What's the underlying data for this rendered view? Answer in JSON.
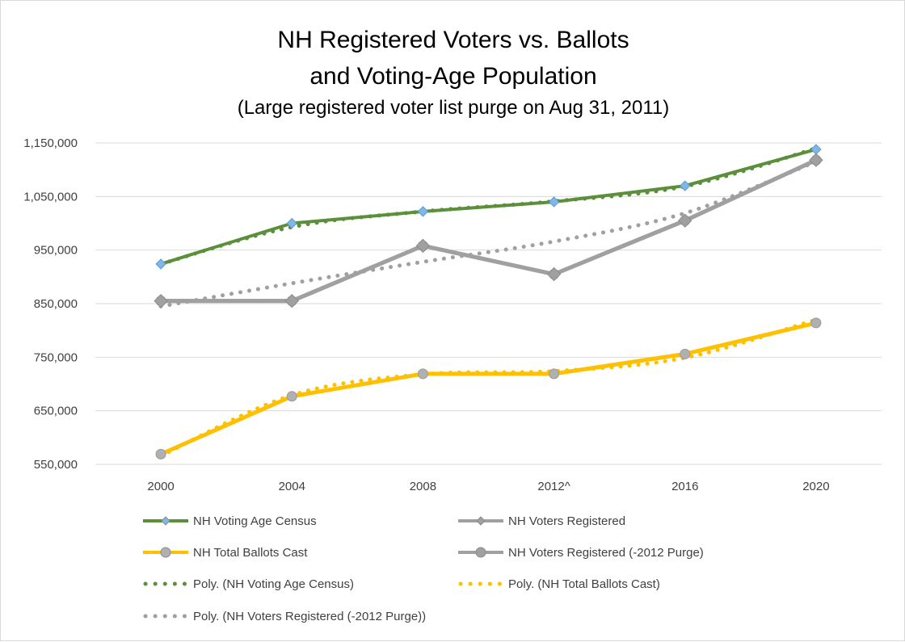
{
  "chart_data": {
    "type": "line",
    "title": [
      "NH Registered Voters vs. Ballots",
      "and Voting-Age Population"
    ],
    "subtitle": "(Large registered voter list purge on Aug 31, 2011)",
    "categories": [
      "2000",
      "2004",
      "2008",
      "2012^",
      "2016",
      "2020"
    ],
    "y_ticks": [
      "550,000",
      "650,000",
      "750,000",
      "850,000",
      "950,000",
      "1,050,000",
      "1,150,000"
    ],
    "ylim": [
      550000,
      1150000
    ],
    "grid": true,
    "legend_position": "bottom",
    "series": [
      {
        "name": "NH Voting Age Census",
        "values": [
          924000,
          1000000,
          1022000,
          1040000,
          1070000,
          1138000
        ],
        "color": "#5b8f3a",
        "marker": "diamond",
        "marker_color": "#7fb8e6"
      },
      {
        "name": "NH Voters Registered",
        "values": [
          855000,
          855000,
          958000,
          905000,
          1005000,
          1118000
        ],
        "color": "#a0a0a0",
        "marker": "diamond",
        "marker_color": "#a0a0a0"
      },
      {
        "name": "NH Total Ballots Cast",
        "values": [
          569000,
          677000,
          719000,
          719000,
          756000,
          814000
        ],
        "color": "#ffc000",
        "marker": "circle",
        "marker_color": "#b0b0b0"
      },
      {
        "name": "NH Voters Registered (-2012 Purge)",
        "values": [
          855000,
          855000,
          958000,
          905000,
          1005000,
          1118000
        ],
        "color": "#a0a0a0",
        "marker": "circle",
        "marker_color": "#a0a0a0"
      }
    ],
    "trendlines": [
      {
        "name": "Poly. (NH Voting Age Census)",
        "color": "#5b8f3a",
        "points": [
          [
            0,
            924000
          ],
          [
            1,
            993000
          ],
          [
            2,
            1022000
          ],
          [
            3,
            1041000
          ],
          [
            4,
            1069000
          ],
          [
            5,
            1140000
          ]
        ]
      },
      {
        "name": "Poly. (NH Total Ballots Cast)",
        "color": "#ffc000",
        "points": [
          [
            0,
            566000
          ],
          [
            1,
            679000
          ],
          [
            2,
            718000
          ],
          [
            3,
            724000
          ],
          [
            4,
            749000
          ],
          [
            5,
            820000
          ]
        ]
      },
      {
        "name": "Poly. (NH Voters Registered (-2012 Purge))",
        "color": "#a0a0a0",
        "points": [
          [
            0,
            845000
          ],
          [
            1,
            888000
          ],
          [
            2,
            928000
          ],
          [
            3,
            966000
          ],
          [
            4,
            1019000
          ],
          [
            5,
            1115000
          ]
        ]
      }
    ]
  }
}
